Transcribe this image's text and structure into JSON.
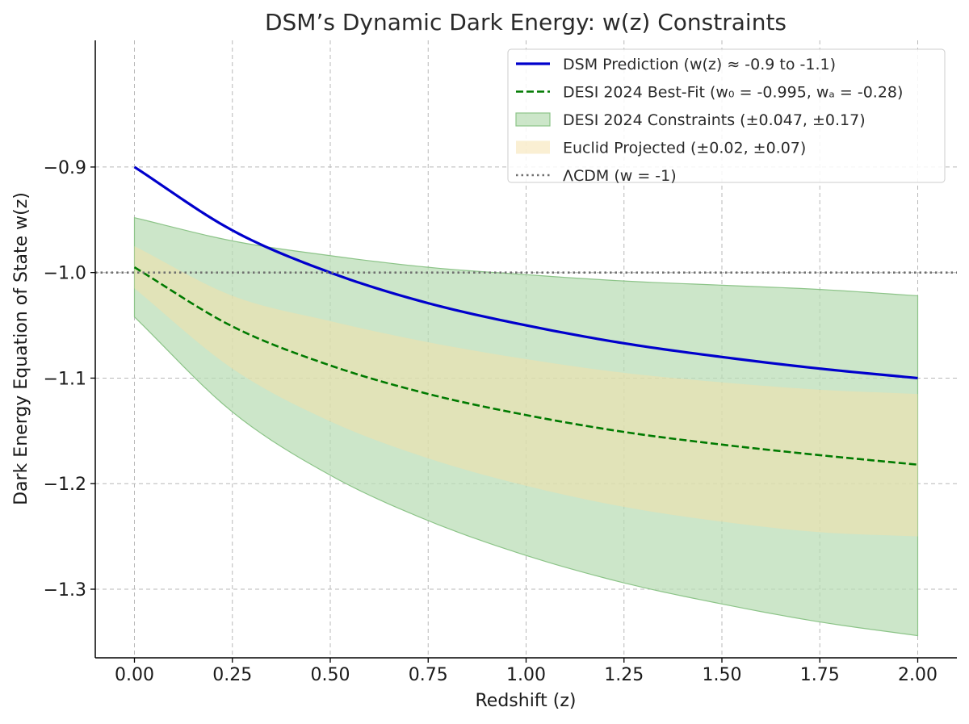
{
  "chart_data": {
    "type": "line",
    "title": "DSM’s Dynamic Dark Energy: w(z) Constraints",
    "xlabel": "Redshift (z)",
    "ylabel": "Dark Energy Equation of State w(z)",
    "xlim": [
      -0.1,
      2.1
    ],
    "ylim": [
      -1.365,
      -0.78
    ],
    "x_ticks": [
      0.0,
      0.25,
      0.5,
      0.75,
      1.0,
      1.25,
      1.5,
      1.75,
      2.0
    ],
    "x_tick_labels": [
      "0.00",
      "0.25",
      "0.50",
      "0.75",
      "1.00",
      "1.25",
      "1.50",
      "1.75",
      "2.00"
    ],
    "y_ticks": [
      -0.9,
      -1.0,
      -1.1,
      -1.2,
      -1.3
    ],
    "y_tick_labels": [
      "−0.9",
      "−1.0",
      "−1.1",
      "−1.2",
      "−1.3"
    ],
    "grid": true,
    "legend_position": "upper-right",
    "x": [
      0.0,
      0.25,
      0.5,
      0.75,
      1.0,
      1.25,
      1.5,
      1.75,
      2.0
    ],
    "series": [
      {
        "name": "DSM Prediction (w(z) ≈ -0.9 to -1.1)",
        "kind": "line",
        "style": "solid",
        "color": "#0000cc",
        "values": [
          -0.9,
          -0.96,
          -1.0,
          -1.029,
          -1.05,
          -1.067,
          -1.08,
          -1.091,
          -1.1
        ]
      },
      {
        "name": "DESI 2024 Best-Fit (w₀ = -0.995, wₐ = -0.28)",
        "kind": "line",
        "style": "dashed",
        "color": "#007a00",
        "values": [
          -0.995,
          -1.051,
          -1.088,
          -1.115,
          -1.135,
          -1.151,
          -1.163,
          -1.173,
          -1.182
        ]
      },
      {
        "name": "DESI 2024 Constraints (±0.047, ±0.17)",
        "kind": "band",
        "color": "#b8dcb4",
        "edge_color": "#8cc488",
        "lower": [
          -1.042,
          -1.132,
          -1.192,
          -1.235,
          -1.268,
          -1.294,
          -1.314,
          -1.331,
          -1.344
        ],
        "upper": [
          -0.948,
          -0.97,
          -0.984,
          -0.995,
          -1.002,
          -1.008,
          -1.012,
          -1.016,
          -1.022
        ]
      },
      {
        "name": "Euclid Projected (±0.02, ±0.07)",
        "kind": "band",
        "color": "#f6dfa8",
        "lower": [
          -1.015,
          -1.091,
          -1.141,
          -1.176,
          -1.202,
          -1.222,
          -1.236,
          -1.246,
          -1.25
        ],
        "upper": [
          -0.975,
          -1.022,
          -1.046,
          -1.066,
          -1.082,
          -1.095,
          -1.104,
          -1.111,
          -1.115
        ]
      },
      {
        "name": "ΛCDM (w = -1)",
        "kind": "hline",
        "style": "dotted",
        "color": "#707070",
        "y": -1.0
      }
    ]
  }
}
